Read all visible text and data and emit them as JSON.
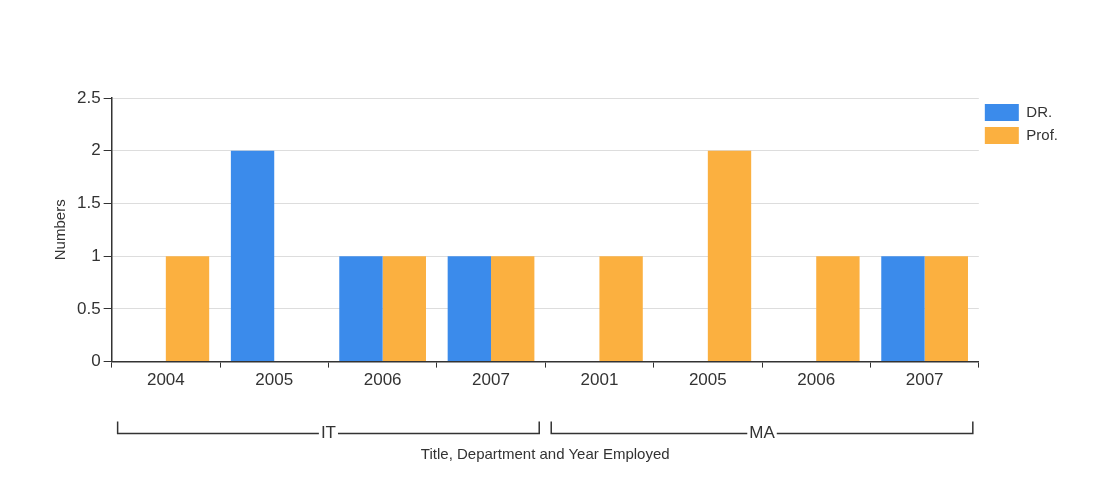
{
  "chart_data": {
    "type": "bar",
    "xlabel": "Title, Department and Year Employed",
    "ylabel": "Numbers",
    "categories": [
      "2004",
      "2005",
      "2006",
      "2007",
      "2001",
      "2005",
      "2006",
      "2007"
    ],
    "series": [
      {
        "name": "DR.",
        "color": "#3b8beb",
        "values": [
          0,
          2,
          1,
          1,
          0,
          0,
          0,
          1
        ]
      },
      {
        "name": "Prof.",
        "color": "#fbb040",
        "values": [
          1,
          0,
          1,
          1,
          1,
          2,
          1,
          1
        ]
      }
    ],
    "ylim": [
      0,
      2.5
    ],
    "yticks": [
      0,
      0.5,
      1,
      1.5,
      2,
      2.5
    ],
    "grid": "y",
    "legend": "top right",
    "annotations": [
      "IT",
      "MA"
    ]
  }
}
